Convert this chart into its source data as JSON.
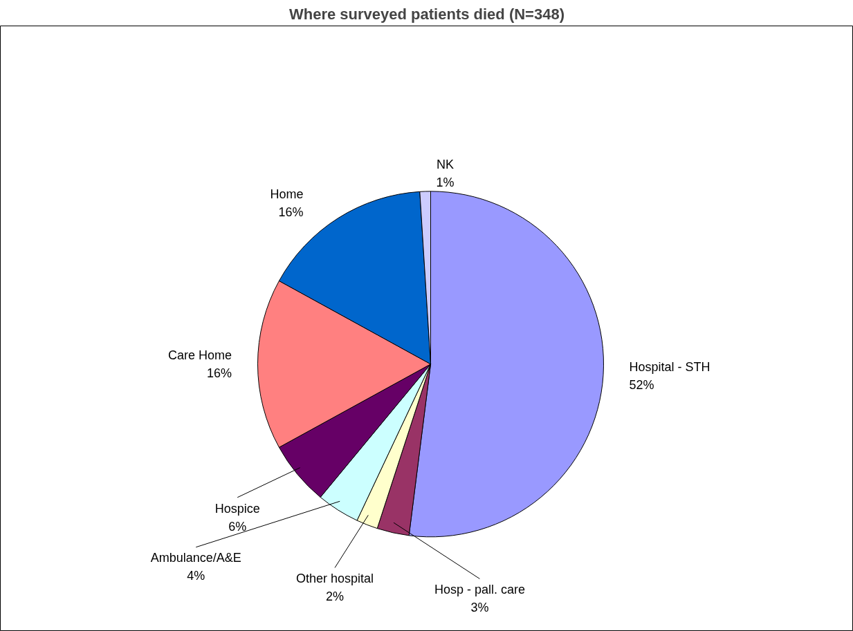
{
  "chart_data": {
    "type": "pie",
    "title": "Where surveyed patients died (N=348)",
    "categories": [
      "Hospital - STH",
      "Hosp - pall. care",
      "Other hospital",
      "Ambulance/A&E",
      "Hospice",
      "Care Home",
      "Home",
      "NK"
    ],
    "values": [
      52,
      3,
      2,
      4,
      6,
      16,
      16,
      1
    ],
    "value_labels": [
      "52%",
      "3%",
      "2%",
      "4%",
      "6%",
      "16%",
      "16%",
      "1%"
    ],
    "colors": [
      "#9999ff",
      "#993366",
      "#ffffcc",
      "#ccffff",
      "#660066",
      "#ff8080",
      "#0066cc",
      "#ccccff"
    ],
    "legend": false
  }
}
